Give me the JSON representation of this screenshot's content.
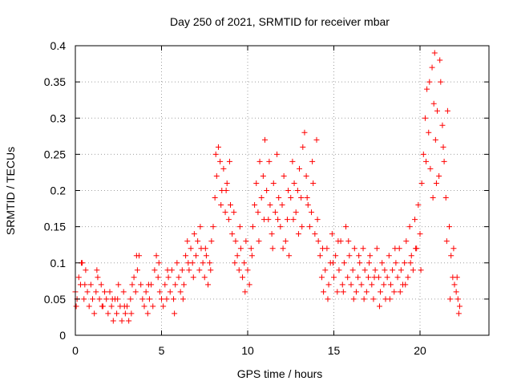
{
  "chart_data": {
    "type": "scatter",
    "title": "Day 250 of 2021, SRMTID for receiver mbar",
    "xlabel": "GPS time / hours",
    "ylabel": "SRMTID / TECUs",
    "xlim": [
      0,
      24
    ],
    "ylim": [
      0,
      0.4
    ],
    "xticks": [
      0,
      5,
      10,
      15,
      20
    ],
    "yticks": [
      0,
      0.05,
      0.1,
      0.15,
      0.2,
      0.25,
      0.3,
      0.35,
      0.4
    ],
    "xtick_labels": [
      "0",
      "5",
      "10",
      "15",
      "20"
    ],
    "ytick_labels": [
      "0",
      "0.05",
      "0.1",
      "0.15",
      "0.2",
      "0.25",
      "0.3",
      "0.35",
      "0.4"
    ],
    "marker": "+",
    "grid": true,
    "color": "#ff0000",
    "series": [
      {
        "name": "SRMTID",
        "points": [
          [
            0.0,
            0.06
          ],
          [
            0.1,
            0.05
          ],
          [
            0.2,
            0.08
          ],
          [
            0.3,
            0.07
          ],
          [
            0.4,
            0.1
          ],
          [
            0.5,
            0.05
          ],
          [
            0.6,
            0.09
          ],
          [
            0.7,
            0.06
          ],
          [
            0.8,
            0.04
          ],
          [
            0.9,
            0.07
          ],
          [
            1.0,
            0.05
          ],
          [
            1.1,
            0.03
          ],
          [
            1.2,
            0.06
          ],
          [
            1.3,
            0.08
          ],
          [
            1.4,
            0.05
          ],
          [
            1.5,
            0.07
          ],
          [
            1.6,
            0.04
          ],
          [
            1.7,
            0.06
          ],
          [
            1.8,
            0.05
          ],
          [
            1.9,
            0.03
          ],
          [
            2.0,
            0.06
          ],
          [
            2.1,
            0.04
          ],
          [
            2.2,
            0.02
          ],
          [
            2.3,
            0.05
          ],
          [
            2.4,
            0.03
          ],
          [
            2.5,
            0.07
          ],
          [
            2.6,
            0.04
          ],
          [
            2.7,
            0.02
          ],
          [
            2.8,
            0.06
          ],
          [
            2.9,
            0.03
          ],
          [
            3.0,
            0.04
          ],
          [
            3.1,
            0.02
          ],
          [
            3.2,
            0.05
          ],
          [
            3.3,
            0.07
          ],
          [
            3.4,
            0.08
          ],
          [
            3.5,
            0.06
          ],
          [
            3.6,
            0.09
          ],
          [
            3.7,
            0.11
          ],
          [
            3.8,
            0.07
          ],
          [
            3.9,
            0.05
          ],
          [
            4.0,
            0.04
          ],
          [
            4.1,
            0.06
          ],
          [
            4.2,
            0.03
          ],
          [
            4.3,
            0.05
          ],
          [
            4.4,
            0.07
          ],
          [
            4.5,
            0.04
          ],
          [
            4.6,
            0.09
          ],
          [
            4.7,
            0.11
          ],
          [
            4.8,
            0.08
          ],
          [
            4.9,
            0.06
          ],
          [
            5.0,
            0.05
          ],
          [
            5.1,
            0.04
          ],
          [
            5.2,
            0.07
          ],
          [
            5.3,
            0.05
          ],
          [
            5.4,
            0.08
          ],
          [
            5.5,
            0.06
          ],
          [
            5.6,
            0.09
          ],
          [
            5.7,
            0.05
          ],
          [
            5.8,
            0.07
          ],
          [
            5.9,
            0.1
          ],
          [
            6.0,
            0.08
          ],
          [
            6.1,
            0.06
          ],
          [
            6.2,
            0.09
          ],
          [
            6.3,
            0.07
          ],
          [
            6.4,
            0.11
          ],
          [
            6.5,
            0.13
          ],
          [
            6.6,
            0.09
          ],
          [
            6.7,
            0.12
          ],
          [
            6.8,
            0.1
          ],
          [
            6.9,
            0.14
          ],
          [
            7.0,
            0.11
          ],
          [
            7.1,
            0.13
          ],
          [
            7.2,
            0.09
          ],
          [
            7.3,
            0.12
          ],
          [
            7.4,
            0.1
          ],
          [
            7.5,
            0.08
          ],
          [
            7.6,
            0.11
          ],
          [
            7.7,
            0.07
          ],
          [
            7.8,
            0.1
          ],
          [
            7.9,
            0.13
          ],
          [
            8.0,
            0.15
          ],
          [
            8.1,
            0.19
          ],
          [
            8.2,
            0.22
          ],
          [
            8.3,
            0.26
          ],
          [
            8.4,
            0.24
          ],
          [
            8.5,
            0.2
          ],
          [
            8.6,
            0.23
          ],
          [
            8.7,
            0.17
          ],
          [
            8.8,
            0.21
          ],
          [
            8.9,
            0.16
          ],
          [
            9.0,
            0.18
          ],
          [
            9.1,
            0.14
          ],
          [
            9.2,
            0.17
          ],
          [
            9.3,
            0.13
          ],
          [
            9.4,
            0.11
          ],
          [
            9.5,
            0.09
          ],
          [
            9.6,
            0.12
          ],
          [
            9.7,
            0.08
          ],
          [
            9.8,
            0.1
          ],
          [
            9.9,
            0.13
          ],
          [
            10.0,
            0.09
          ],
          [
            10.1,
            0.07
          ],
          [
            10.2,
            0.12
          ],
          [
            10.3,
            0.15
          ],
          [
            10.4,
            0.18
          ],
          [
            10.5,
            0.21
          ],
          [
            10.6,
            0.17
          ],
          [
            10.7,
            0.24
          ],
          [
            10.8,
            0.19
          ],
          [
            10.9,
            0.22
          ],
          [
            11.0,
            0.27
          ],
          [
            11.1,
            0.2
          ],
          [
            11.2,
            0.16
          ],
          [
            11.3,
            0.18
          ],
          [
            11.4,
            0.14
          ],
          [
            11.5,
            0.21
          ],
          [
            11.6,
            0.17
          ],
          [
            11.7,
            0.25
          ],
          [
            11.8,
            0.19
          ],
          [
            11.9,
            0.15
          ],
          [
            12.0,
            0.18
          ],
          [
            12.1,
            0.22
          ],
          [
            12.2,
            0.13
          ],
          [
            12.3,
            0.16
          ],
          [
            12.4,
            0.11
          ],
          [
            12.5,
            0.19
          ],
          [
            12.6,
            0.24
          ],
          [
            12.7,
            0.21
          ],
          [
            12.8,
            0.17
          ],
          [
            12.9,
            0.2
          ],
          [
            13.0,
            0.23
          ],
          [
            13.1,
            0.19
          ],
          [
            13.2,
            0.26
          ],
          [
            13.3,
            0.28
          ],
          [
            13.4,
            0.22
          ],
          [
            13.5,
            0.18
          ],
          [
            13.6,
            0.15
          ],
          [
            13.7,
            0.17
          ],
          [
            13.8,
            0.21
          ],
          [
            13.9,
            0.14
          ],
          [
            14.0,
            0.27
          ],
          [
            14.1,
            0.13
          ],
          [
            14.2,
            0.11
          ],
          [
            14.3,
            0.08
          ],
          [
            14.4,
            0.06
          ],
          [
            14.5,
            0.09
          ],
          [
            14.6,
            0.12
          ],
          [
            14.7,
            0.07
          ],
          [
            14.8,
            0.1
          ],
          [
            14.9,
            0.14
          ],
          [
            15.0,
            0.08
          ],
          [
            15.1,
            0.11
          ],
          [
            15.2,
            0.06
          ],
          [
            15.3,
            0.09
          ],
          [
            15.4,
            0.13
          ],
          [
            15.5,
            0.07
          ],
          [
            15.6,
            0.1
          ],
          [
            15.7,
            0.15
          ],
          [
            15.8,
            0.08
          ],
          [
            15.9,
            0.11
          ],
          [
            16.0,
            0.07
          ],
          [
            16.1,
            0.09
          ],
          [
            16.2,
            0.12
          ],
          [
            16.3,
            0.06
          ],
          [
            16.4,
            0.08
          ],
          [
            16.5,
            0.1
          ],
          [
            16.6,
            0.07
          ],
          [
            16.7,
            0.12
          ],
          [
            16.8,
            0.09
          ],
          [
            16.9,
            0.06
          ],
          [
            17.0,
            0.08
          ],
          [
            17.1,
            0.11
          ],
          [
            17.2,
            0.07
          ],
          [
            17.3,
            0.05
          ],
          [
            17.4,
            0.09
          ],
          [
            17.5,
            0.12
          ],
          [
            17.6,
            0.08
          ],
          [
            17.7,
            0.06
          ],
          [
            17.8,
            0.1
          ],
          [
            17.9,
            0.07
          ],
          [
            18.0,
            0.05
          ],
          [
            18.1,
            0.08
          ],
          [
            18.2,
            0.11
          ],
          [
            18.3,
            0.07
          ],
          [
            18.4,
            0.09
          ],
          [
            18.5,
            0.06
          ],
          [
            18.6,
            0.1
          ],
          [
            18.7,
            0.08
          ],
          [
            18.8,
            0.12
          ],
          [
            18.9,
            0.09
          ],
          [
            19.0,
            0.07
          ],
          [
            19.1,
            0.1
          ],
          [
            19.2,
            0.13
          ],
          [
            19.3,
            0.08
          ],
          [
            19.4,
            0.15
          ],
          [
            19.5,
            0.11
          ],
          [
            19.6,
            0.09
          ],
          [
            19.7,
            0.16
          ],
          [
            19.8,
            0.12
          ],
          [
            19.9,
            0.18
          ],
          [
            20.0,
            0.14
          ],
          [
            20.1,
            0.21
          ],
          [
            20.2,
            0.25
          ],
          [
            20.3,
            0.3
          ],
          [
            20.4,
            0.34
          ],
          [
            20.5,
            0.28
          ],
          [
            20.6,
            0.23
          ],
          [
            20.7,
            0.37
          ],
          [
            20.8,
            0.32
          ],
          [
            20.9,
            0.27
          ],
          [
            21.0,
            0.31
          ],
          [
            21.1,
            0.22
          ],
          [
            21.2,
            0.35
          ],
          [
            21.3,
            0.29
          ],
          [
            21.4,
            0.24
          ],
          [
            21.5,
            0.19
          ],
          [
            21.6,
            0.31
          ],
          [
            21.7,
            0.15
          ],
          [
            21.8,
            0.11
          ],
          [
            21.9,
            0.08
          ],
          [
            22.0,
            0.07
          ],
          [
            22.1,
            0.06
          ],
          [
            22.2,
            0.05
          ],
          [
            22.3,
            0.04
          ],
          [
            0.05,
            0.04
          ],
          [
            0.35,
            0.1
          ],
          [
            0.55,
            0.07
          ],
          [
            1.25,
            0.09
          ],
          [
            1.55,
            0.04
          ],
          [
            2.15,
            0.05
          ],
          [
            2.45,
            0.05
          ],
          [
            2.85,
            0.04
          ],
          [
            3.25,
            0.03
          ],
          [
            3.55,
            0.11
          ],
          [
            4.25,
            0.07
          ],
          [
            4.85,
            0.1
          ],
          [
            5.35,
            0.09
          ],
          [
            5.75,
            0.03
          ],
          [
            6.25,
            0.05
          ],
          [
            6.55,
            0.1
          ],
          [
            6.85,
            0.08
          ],
          [
            7.25,
            0.15
          ],
          [
            7.55,
            0.12
          ],
          [
            7.85,
            0.09
          ],
          [
            8.15,
            0.25
          ],
          [
            8.45,
            0.18
          ],
          [
            8.75,
            0.2
          ],
          [
            8.95,
            0.24
          ],
          [
            9.25,
            0.1
          ],
          [
            9.55,
            0.15
          ],
          [
            9.85,
            0.06
          ],
          [
            10.25,
            0.11
          ],
          [
            10.65,
            0.13
          ],
          [
            10.95,
            0.16
          ],
          [
            11.25,
            0.24
          ],
          [
            11.45,
            0.12
          ],
          [
            11.75,
            0.16
          ],
          [
            12.05,
            0.12
          ],
          [
            12.35,
            0.2
          ],
          [
            12.65,
            0.16
          ],
          [
            12.95,
            0.14
          ],
          [
            13.15,
            0.15
          ],
          [
            13.45,
            0.19
          ],
          [
            13.75,
            0.24
          ],
          [
            14.05,
            0.16
          ],
          [
            14.35,
            0.12
          ],
          [
            14.65,
            0.05
          ],
          [
            14.95,
            0.1
          ],
          [
            15.25,
            0.13
          ],
          [
            15.55,
            0.06
          ],
          [
            15.85,
            0.13
          ],
          [
            16.15,
            0.05
          ],
          [
            16.45,
            0.11
          ],
          [
            16.75,
            0.05
          ],
          [
            17.05,
            0.1
          ],
          [
            17.35,
            0.08
          ],
          [
            17.65,
            0.04
          ],
          [
            17.95,
            0.09
          ],
          [
            18.25,
            0.05
          ],
          [
            18.55,
            0.12
          ],
          [
            18.85,
            0.06
          ],
          [
            19.15,
            0.07
          ],
          [
            19.45,
            0.1
          ],
          [
            19.75,
            0.12
          ],
          [
            20.05,
            0.09
          ],
          [
            20.35,
            0.24
          ],
          [
            20.55,
            0.35
          ],
          [
            20.75,
            0.19
          ],
          [
            20.85,
            0.39
          ],
          [
            20.95,
            0.21
          ],
          [
            21.15,
            0.38
          ],
          [
            21.35,
            0.26
          ],
          [
            21.55,
            0.13
          ],
          [
            21.75,
            0.05
          ],
          [
            21.95,
            0.12
          ],
          [
            22.15,
            0.08
          ],
          [
            22.25,
            0.03
          ]
        ]
      }
    ]
  }
}
